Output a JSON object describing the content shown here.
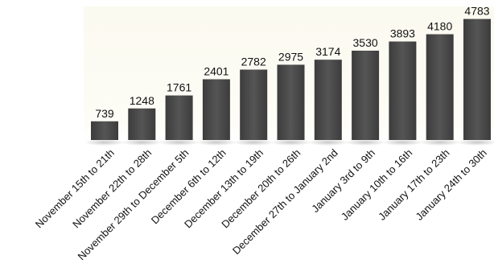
{
  "chart_data": {
    "type": "bar",
    "categories": [
      "November 15th to 21th",
      "November 22th to 28th",
      "November 29th to December 5th",
      "December 6th to 12th",
      "December 13th to 19th",
      "December 20th to 26th",
      "December 27th to January 2nd",
      "January 3rd to 9th",
      "January 10th to 16th",
      "January 17th to 23th",
      "January 24th to 30th"
    ],
    "values": [
      739,
      1248,
      1761,
      2401,
      2782,
      2975,
      3174,
      3530,
      3893,
      4180,
      4783
    ],
    "data_labels": [
      "739",
      "1248",
      "1761",
      "2401",
      "2782",
      "2975",
      "3174",
      "3530",
      "3893",
      "4180",
      "4783"
    ],
    "ylim": [
      0,
      5000
    ],
    "grid": false,
    "legend": "none",
    "colors": {
      "bar": "#4a4a4a",
      "plot_background": "#fbfaf0",
      "text": "#111111"
    }
  }
}
